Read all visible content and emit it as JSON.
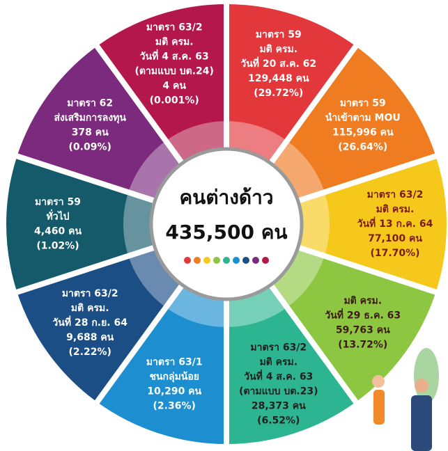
{
  "title": "คนต่างด้าว",
  "total": "435,500 คน",
  "segments": [
    {
      "color": "#e2383c",
      "text_color": "#ffffff",
      "lines": [
        "มาตรา 59",
        "มติ ครม.",
        "วันที่ 20 ส.ค. 62",
        "129,448 คน",
        "(29.72%)"
      ]
    },
    {
      "color": "#f07c22",
      "text_color": "#ffffff",
      "lines": [
        "มาตรา 59",
        "นำเข้าตาม MOU",
        "115,996 คน",
        "(26.64%)"
      ]
    },
    {
      "color": "#f6c81b",
      "text_color": "#7a1c14",
      "lines": [
        "มาตรา 63/2",
        "มติ ครม.",
        "วันที่ 13 ก.ค. 64",
        "77,100 คน",
        "(17.70%)"
      ]
    },
    {
      "color": "#8dc641",
      "text_color": "#3d1a14",
      "lines": [
        "มติ ครม.",
        "วันที่ 29 ธ.ค. 63",
        "59,763 คน",
        "(13.72%)"
      ]
    },
    {
      "color": "#2db591",
      "text_color": "#1f1f1f",
      "lines": [
        "มาตรา 63/2",
        "มติ ครม.",
        "วันที่ 4 ส.ค. 63",
        "(ตามแบบ บต.23)",
        "28,373 คน",
        "(6.52%)"
      ]
    },
    {
      "color": "#1d8fd1",
      "text_color": "#ffffff",
      "lines": [
        "มาตรา 63/1",
        "ชนกลุ่มน้อย",
        "10,290 คน",
        "(2.36%)"
      ]
    },
    {
      "color": "#1b4e85",
      "text_color": "#ffffff",
      "lines": [
        "มาตรา 63/2",
        "มติ ครม.",
        "วันที่ 28 ก.ย. 64",
        "9,688 คน",
        "(2.22%)"
      ]
    },
    {
      "color": "#155a6a",
      "text_color": "#ffffff",
      "lines": [
        "มาตรา 59",
        "ทั่วไป",
        "4,460 คน",
        "(1.02%)"
      ]
    },
    {
      "color": "#7b2a7e",
      "text_color": "#ffffff",
      "lines": [
        "มาตรา 62",
        "ส่งเสริมการลงทุน",
        "378 คน",
        "(0.09%)"
      ]
    },
    {
      "color": "#b3174b",
      "text_color": "#ffffff",
      "lines": [
        "มาตรา 63/2",
        "มติ ครม.",
        "วันที่ 4 ส.ค. 63",
        "(ตามแบบ บต.24)",
        "4 คน",
        "(0.001%)"
      ]
    }
  ]
}
